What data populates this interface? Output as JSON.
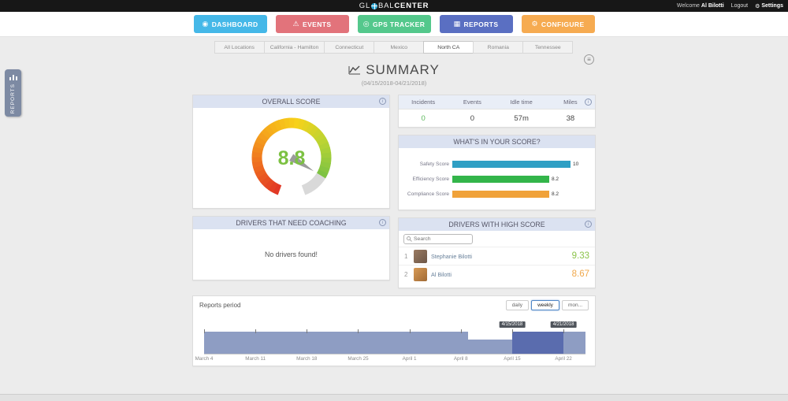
{
  "topbar": {
    "logo_pre": "GL",
    "logo_mid": "BAL",
    "logo_bold": "CENTER",
    "welcome_prefix": "Welcome",
    "user": "Al Bilotti",
    "logout": "Logout",
    "settings": "Settings"
  },
  "nav": {
    "items": [
      {
        "id": "dashboard",
        "label": "DASHBOARD",
        "icon": "dashboard-icon",
        "color": "#45b8e8"
      },
      {
        "id": "events",
        "label": "EVENTS",
        "icon": "events-icon",
        "color": "#e2737b"
      },
      {
        "id": "gps-tracker",
        "label": "GPS TRACKER",
        "icon": "gps-icon",
        "color": "#54c88c"
      },
      {
        "id": "reports",
        "label": "REPORTS",
        "icon": "reports-icon",
        "color": "#5a6fc2"
      },
      {
        "id": "configure",
        "label": "CONFIGURE",
        "icon": "configure-icon",
        "color": "#f6ab51"
      }
    ]
  },
  "tabs": {
    "active_index": 4,
    "items": [
      "All Locations",
      "California - Hamilton",
      "Connecticut",
      "Mexico",
      "North CA",
      "Romania",
      "Tennessee"
    ]
  },
  "sidebar_tab": {
    "label": "REPORTS"
  },
  "page": {
    "title": "SUMMARY",
    "subtitle": "(04/15/2018-04/21/2018)"
  },
  "overall_score": {
    "title": "OVERALL SCORE"
  },
  "stats": {
    "items": [
      {
        "label": "Incidents",
        "value": "0",
        "color": "#5cb85c"
      },
      {
        "label": "Events",
        "value": "0",
        "color": "#444444"
      },
      {
        "label": "Idle time",
        "value": "57m",
        "color": "#444444"
      },
      {
        "label": "Miles",
        "value": "38",
        "color": "#444444"
      }
    ]
  },
  "score_breakdown": {
    "title": "WHAT'S IN YOUR SCORE?"
  },
  "coaching": {
    "title": "DRIVERS THAT NEED COACHING",
    "empty_message": "No drivers found!"
  },
  "high_score": {
    "title": "DRIVERS WITH HIGH SCORE",
    "search_placeholder": "Search",
    "drivers": [
      {
        "rank": "1",
        "name": "Stephanie Bilotti",
        "score": "9.33",
        "score_color": "#8bc34a",
        "avatar_colors": [
          "#9a7a62",
          "#6d5747"
        ]
      },
      {
        "rank": "2",
        "name": "Al Bilotti",
        "score": "8.67",
        "score_color": "#f0a84c",
        "avatar_colors": [
          "#d89a55",
          "#a06a35"
        ]
      }
    ]
  },
  "reports_period": {
    "title": "Reports period",
    "active_index": 1,
    "buttons": [
      "daily",
      "weekly",
      "mon..."
    ]
  },
  "chart_data": [
    {
      "id": "overall-score-gauge",
      "type": "gauge",
      "title": "OVERALL SCORE",
      "value": 8.8,
      "min": 0,
      "max": 10,
      "value_color": "#7cc142",
      "track_color": "#d9d9d9",
      "color_stops": [
        "#e03425",
        "#ee6c20",
        "#f5a61c",
        "#f7d21a",
        "#b8d434",
        "#7ac143"
      ]
    },
    {
      "id": "score-breakdown-bars",
      "type": "bar",
      "orientation": "horizontal",
      "title": "WHAT'S IN YOUR SCORE?",
      "categories": [
        "Safety Score",
        "Efficiency Score",
        "Compliance Score"
      ],
      "values": [
        10,
        8.2,
        8.2
      ],
      "value_labels": [
        "10",
        "8.2",
        "8.2"
      ],
      "colors": [
        "#2f9fc4",
        "#33b54a",
        "#f0a23a"
      ],
      "xlim": [
        0,
        10
      ]
    },
    {
      "id": "reports-period-timeline",
      "type": "area",
      "title": "Reports period",
      "total_days": 52,
      "tick_labels": [
        "March 4",
        "March 11",
        "March 18",
        "March 25",
        "April 1",
        "April 8",
        "April 15",
        "April 22"
      ],
      "tick_indices": [
        0,
        7,
        14,
        21,
        28,
        35,
        42,
        49
      ],
      "values": [
        0.92,
        0.92,
        0.92,
        0.92,
        0.92,
        0.92,
        0.92,
        0.92,
        0.92,
        0.92,
        0.92,
        0.92,
        0.92,
        0.92,
        0.92,
        0.92,
        0.92,
        0.92,
        0.92,
        0.92,
        0.92,
        0.92,
        0.92,
        0.92,
        0.92,
        0.92,
        0.92,
        0.92,
        0.92,
        0.92,
        0.92,
        0.92,
        0.92,
        0.92,
        0.92,
        0.92,
        0.6,
        0.6,
        0.6,
        0.6,
        0.6,
        0.6,
        0.92,
        0.92,
        0.92,
        0.92,
        0.92,
        0.92,
        0.92,
        0.92,
        0.92,
        0.92
      ],
      "selection": {
        "start_index": 42,
        "end_index": 48,
        "start_label": "4/15/2018",
        "end_label": "4/21/2018"
      },
      "bar_color": "#8e9dc3",
      "selection_color": "#5a6cae"
    }
  ]
}
